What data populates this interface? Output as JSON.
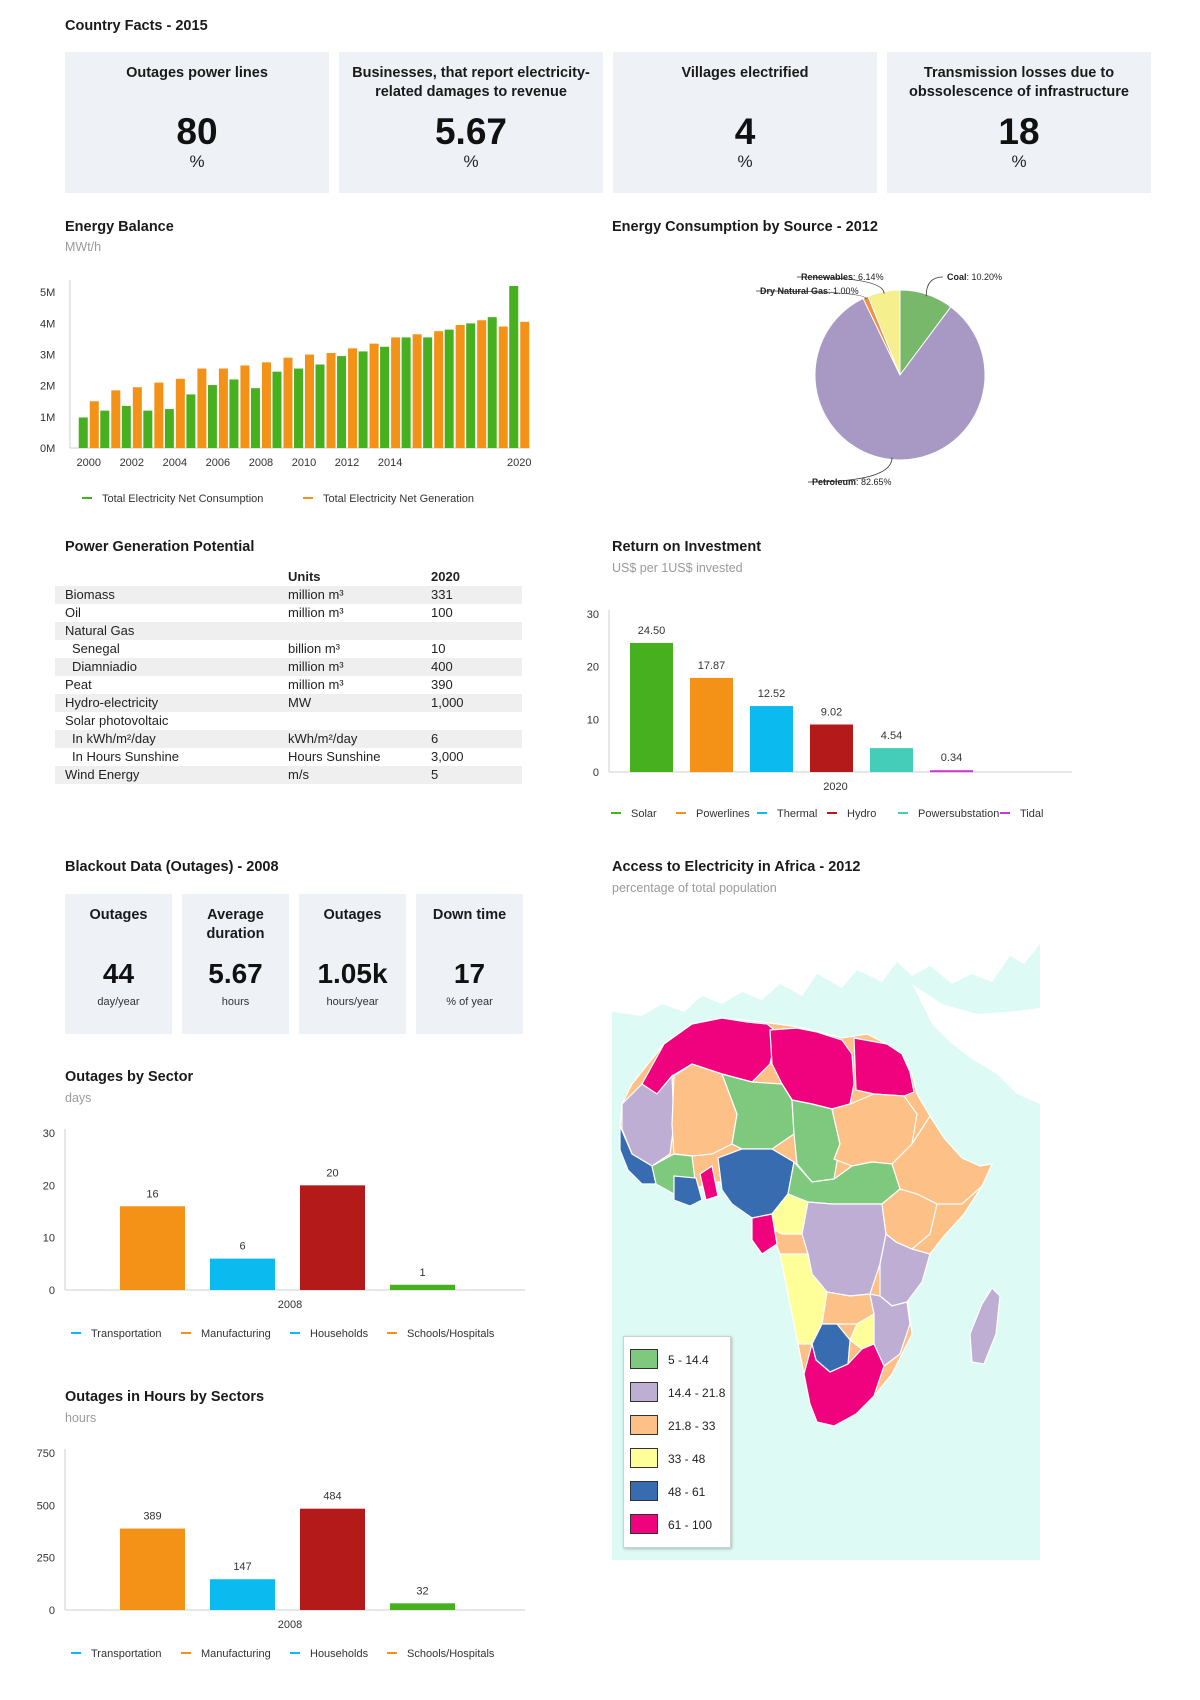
{
  "header": {
    "title": "Country Facts - 2015"
  },
  "kpis": [
    {
      "label": "Outages power lines",
      "value": "80",
      "unit": "%"
    },
    {
      "label": "Businesses, that report electricity-related damages to revenue",
      "value": "5.67",
      "unit": "%"
    },
    {
      "label": "Villages electrified",
      "value": "4",
      "unit": "%"
    },
    {
      "label": "Transmission losses due to obssolescence of infrastructure",
      "value": "18",
      "unit": "%"
    }
  ],
  "energy_balance": {
    "title": "Energy Balance",
    "subtitle": "MWt/h",
    "legend": [
      "Total Electricity Net Consumption",
      "Total Electricity Net Generation"
    ],
    "colors": {
      "consumption": "#46b01f",
      "generation": "#f39217"
    }
  },
  "energy_consumption": {
    "title": "Energy Consumption by Source - 2012"
  },
  "power_generation": {
    "title": "Power Generation Potential",
    "headers": [
      "",
      "Units",
      "2020"
    ],
    "rows": [
      {
        "name": "Biomass",
        "unit": "million m³",
        "value": "331",
        "indent": false
      },
      {
        "name": "Oil",
        "unit": "million m³",
        "value": "100",
        "indent": false
      },
      {
        "name": "Natural Gas",
        "unit": "",
        "value": "",
        "indent": false
      },
      {
        "name": "Senegal",
        "unit": "billion m³",
        "value": "10",
        "indent": true
      },
      {
        "name": "Diamniadio",
        "unit": "million m³",
        "value": "400",
        "indent": true
      },
      {
        "name": "Peat",
        "unit": "million m³",
        "value": "390",
        "indent": false
      },
      {
        "name": "Hydro-electricity",
        "unit": "MW",
        "value": "1,000",
        "indent": false
      },
      {
        "name": "Solar photovoltaic",
        "unit": "",
        "value": "",
        "indent": false
      },
      {
        "name": "In kWh/m²/day",
        "unit": "kWh/m²/day",
        "value": "6",
        "indent": true
      },
      {
        "name": "In Hours Sunshine",
        "unit": "Hours Sunshine",
        "value": "3,000",
        "indent": true
      },
      {
        "name": "Wind Energy",
        "unit": "m/s",
        "value": "5",
        "indent": false
      }
    ]
  },
  "roi": {
    "title": "Return on Investment",
    "subtitle": "US$ per 1US$ invested"
  },
  "blackout": {
    "title": "Blackout Data (Outages) - 2008",
    "cards": [
      {
        "label": "Outages",
        "value": "44",
        "unit": "day/year"
      },
      {
        "label": "Average duration",
        "value": "5.67",
        "unit": "hours"
      },
      {
        "label": "Outages",
        "value": "1.05k",
        "unit": "hours/year"
      },
      {
        "label": "Down time",
        "value": "17",
        "unit": "% of year"
      }
    ]
  },
  "outages_sector": {
    "title": "Outages by Sector",
    "subtitle": "days"
  },
  "outages_hours": {
    "title": "Outages in Hours by Sectors",
    "subtitle": "hours"
  },
  "access_map": {
    "title": "Access to Electricity in Africa - 2012",
    "subtitle": "percentage of total population",
    "legend": [
      {
        "label": "5 - 14.4",
        "color": "#7fc97f"
      },
      {
        "label": "14.4 - 21.8",
        "color": "#beaed4"
      },
      {
        "label": "21.8 - 33",
        "color": "#fdc086"
      },
      {
        "label": "33 - 48",
        "color": "#ffff99"
      },
      {
        "label": "48 - 61",
        "color": "#386cb0"
      },
      {
        "label": "61 - 100",
        "color": "#f0027f"
      }
    ]
  },
  "chart_data": [
    {
      "type": "bar",
      "title": "Energy Balance",
      "ylabel": "MWt/h",
      "categories": [
        "2000",
        "2001",
        "2002",
        "2003",
        "2004",
        "2005",
        "2006",
        "2007",
        "2008",
        "2009",
        "2010",
        "2011",
        "2012",
        "2013",
        "2014",
        "2015",
        "2016",
        "2017",
        "2018",
        "2019",
        "2020"
      ],
      "series": [
        {
          "name": "Total Electricity Net Consumption",
          "values": [
            0.98,
            1.2,
            1.35,
            1.2,
            1.25,
            1.72,
            2.02,
            2.2,
            1.92,
            2.45,
            2.55,
            2.68,
            2.95,
            3.1,
            3.25,
            3.55,
            3.55,
            3.8,
            4.0,
            4.2,
            5.2
          ]
        },
        {
          "name": "Total Electricity Net Generation",
          "values": [
            1.5,
            1.85,
            1.95,
            2.1,
            2.22,
            2.55,
            2.55,
            2.65,
            2.75,
            2.9,
            3.0,
            3.05,
            3.2,
            3.35,
            3.55,
            3.65,
            3.75,
            3.95,
            4.1,
            3.9,
            4.05
          ]
        }
      ],
      "yticks": [
        "0M",
        "1M",
        "2M",
        "3M",
        "4M",
        "5M"
      ],
      "xticks": [
        "2000",
        "2002",
        "2004",
        "2006",
        "2008",
        "2010",
        "2012",
        "2014",
        "2020"
      ],
      "ylim": [
        0,
        5.2
      ]
    },
    {
      "type": "pie",
      "title": "Energy Consumption by Source - 2012",
      "slices": [
        {
          "name": "Coal",
          "value": 10.2,
          "label": "10.20%",
          "color": "#77b86a"
        },
        {
          "name": "Petroleum",
          "value": 82.65,
          "label": "82.65%",
          "color": "#a799c4"
        },
        {
          "name": "Dry Natural Gas",
          "value": 1.0,
          "label": "1.00%",
          "color": "#f09040"
        },
        {
          "name": "Renewables",
          "value": 6.14,
          "label": "6.14%",
          "color": "#f6ef8d"
        }
      ]
    },
    {
      "type": "bar",
      "title": "Return on Investment",
      "ylabel": "US$ per 1US$ invested",
      "categories": [
        "2020"
      ],
      "series": [
        {
          "name": "Solar",
          "values": [
            24.5
          ],
          "label": "24.50",
          "color": "#46b01f"
        },
        {
          "name": "Powerlines",
          "values": [
            17.87
          ],
          "label": "17.87",
          "color": "#f39217"
        },
        {
          "name": "Thermal",
          "values": [
            12.52
          ],
          "label": "12.52",
          "color": "#0bbbef"
        },
        {
          "name": "Hydro",
          "values": [
            9.02
          ],
          "label": "9.02",
          "color": "#b41a1a"
        },
        {
          "name": "Powersubstation",
          "values": [
            4.54
          ],
          "label": "4.54",
          "color": "#44cdb8"
        },
        {
          "name": "Tidal",
          "values": [
            0.34
          ],
          "label": "0.34",
          "color": "#cf35d0"
        }
      ],
      "ylim": [
        0,
        30
      ],
      "yticks": [
        "0",
        "10",
        "20",
        "30"
      ]
    },
    {
      "type": "bar",
      "title": "Outages by Sector",
      "ylabel": "days",
      "categories": [
        "2008"
      ],
      "series": [
        {
          "name": "Transportation",
          "values": [
            16
          ],
          "label": "16",
          "color": "#f39217",
          "legend_color": "#0bbbef"
        },
        {
          "name": "Manufacturing",
          "values": [
            6
          ],
          "label": "6",
          "color": "#0bbbef",
          "legend_color": "#f39217"
        },
        {
          "name": "Households",
          "values": [
            20
          ],
          "label": "20",
          "color": "#b41a1a",
          "legend_color": "#0bbbef"
        },
        {
          "name": "Schools/Hospitals",
          "values": [
            1
          ],
          "label": "1",
          "color": "#46b01f",
          "legend_color": "#f39217"
        }
      ],
      "ylim": [
        0,
        30
      ],
      "yticks": [
        "0",
        "10",
        "20",
        "30"
      ]
    },
    {
      "type": "bar",
      "title": "Outages in Hours by Sectors",
      "ylabel": "hours",
      "categories": [
        "2008"
      ],
      "series": [
        {
          "name": "Transportation",
          "values": [
            389
          ],
          "label": "389",
          "color": "#f39217",
          "legend_color": "#0bbbef"
        },
        {
          "name": "Manufacturing",
          "values": [
            147
          ],
          "label": "147",
          "color": "#0bbbef",
          "legend_color": "#f39217"
        },
        {
          "name": "Households",
          "values": [
            484
          ],
          "label": "484",
          "color": "#b41a1a",
          "legend_color": "#0bbbef"
        },
        {
          "name": "Schools/Hospitals",
          "values": [
            32
          ],
          "label": "32",
          "color": "#46b01f",
          "legend_color": "#f39217"
        }
      ],
      "ylim": [
        0,
        750
      ],
      "yticks": [
        "0",
        "250",
        "500",
        "750"
      ]
    }
  ]
}
